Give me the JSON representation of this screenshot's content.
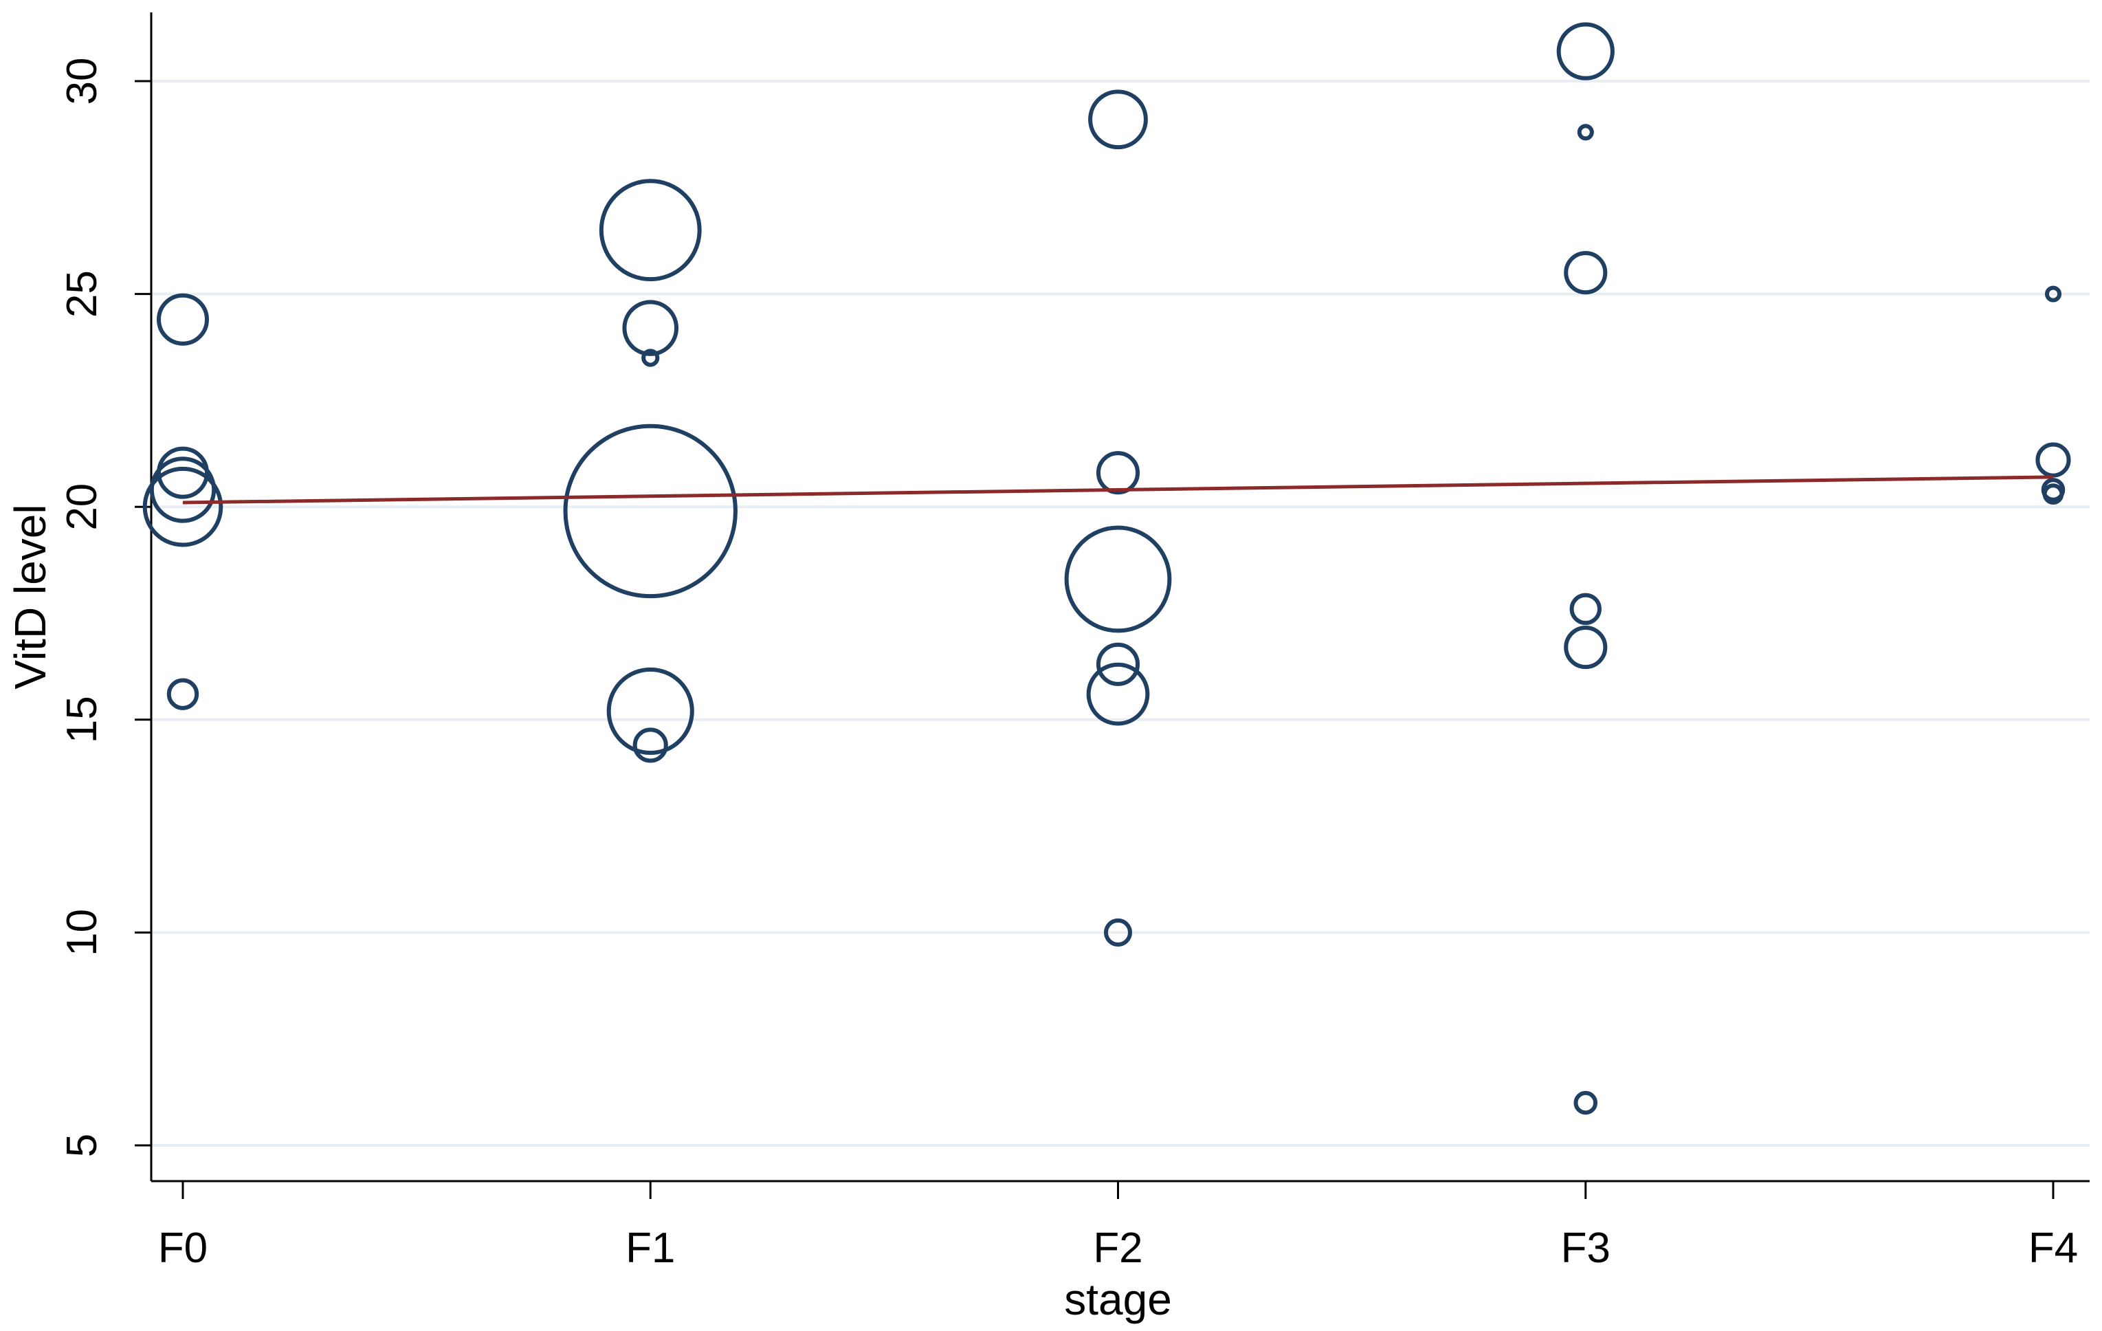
{
  "chart_data": {
    "type": "scatter",
    "title": "",
    "xlabel": "stage",
    "ylabel": "VitD level",
    "categories": [
      "F0",
      "F1",
      "F2",
      "F3",
      "F4"
    ],
    "yticks": [
      5,
      10,
      15,
      20,
      25,
      30
    ],
    "ylim": [
      4.2,
      31.6
    ],
    "grid": true,
    "colors": {
      "bubble": "#1f3f63",
      "fit_line": "#8b2a2a",
      "grid": "#e9eef2",
      "background": "#ffffff"
    },
    "series": [
      {
        "marker": "hollow-circle",
        "points": [
          {
            "x": "F0",
            "y": 24.4,
            "weight": 12
          },
          {
            "x": "F0",
            "y": 20.8,
            "weight": 12
          },
          {
            "x": "F0",
            "y": 20.4,
            "weight": 20
          },
          {
            "x": "F0",
            "y": 20.0,
            "weight": 30
          },
          {
            "x": "F0",
            "y": 15.6,
            "weight": 4
          },
          {
            "x": "F1",
            "y": 26.5,
            "weight": 50
          },
          {
            "x": "F1",
            "y": 24.2,
            "weight": 14
          },
          {
            "x": "F1",
            "y": 23.5,
            "weight": 1
          },
          {
            "x": "F1",
            "y": 19.9,
            "weight": 150
          },
          {
            "x": "F1",
            "y": 15.2,
            "weight": 36
          },
          {
            "x": "F1",
            "y": 14.4,
            "weight": 5
          },
          {
            "x": "F2",
            "y": 29.1,
            "weight": 16
          },
          {
            "x": "F2",
            "y": 20.8,
            "weight": 8
          },
          {
            "x": "F2",
            "y": 18.3,
            "weight": 55
          },
          {
            "x": "F2",
            "y": 16.3,
            "weight": 8
          },
          {
            "x": "F2",
            "y": 15.6,
            "weight": 18
          },
          {
            "x": "F2",
            "y": 10.0,
            "weight": 3
          },
          {
            "x": "F3",
            "y": 30.7,
            "weight": 15
          },
          {
            "x": "F3",
            "y": 28.8,
            "weight": 0.8
          },
          {
            "x": "F3",
            "y": 25.5,
            "weight": 8
          },
          {
            "x": "F3",
            "y": 17.6,
            "weight": 4
          },
          {
            "x": "F3",
            "y": 16.7,
            "weight": 8
          },
          {
            "x": "F3",
            "y": 6.0,
            "weight": 2
          },
          {
            "x": "F4",
            "y": 25.0,
            "weight": 0.8
          },
          {
            "x": "F4",
            "y": 21.1,
            "weight": 5
          },
          {
            "x": "F4",
            "y": 20.4,
            "weight": 2
          },
          {
            "x": "F4",
            "y": 20.3,
            "weight": 1.5
          }
        ]
      }
    ],
    "fit_line": {
      "x": [
        "F0",
        "F4"
      ],
      "y": [
        20.1,
        20.7
      ]
    }
  }
}
